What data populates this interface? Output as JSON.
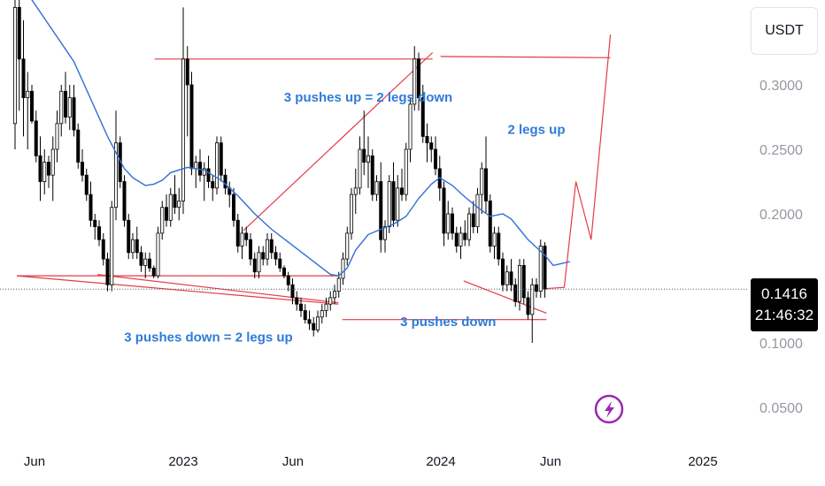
{
  "currency": "USDT",
  "current_price": "0.1416",
  "countdown": "21:46:32",
  "colors": {
    "candle": "#000000",
    "moving_average": "#2f6fd6",
    "pattern_lines": "#e23b46",
    "annotation_text": "#2f7bd8",
    "last_price_line": "#555555",
    "flash_icon": "#9b27b0"
  },
  "icons": {
    "flash": "lightning-bolt-icon"
  },
  "chart_data": {
    "type": "candlestick",
    "title": "",
    "y_scale": "linear",
    "ylim": [
      0.035,
      0.36
    ],
    "y_ticks": [
      "0.3000",
      "0.2500",
      "0.2000",
      "0.1000",
      "0.0500"
    ],
    "x_ticks": [
      "Jun",
      "2023",
      "Jun",
      "2024",
      "Jun",
      "2025"
    ],
    "last_price": 0.1416,
    "ohlc_weekly": [
      [
        0.27,
        0.43,
        0.25,
        0.36
      ],
      [
        0.36,
        0.39,
        0.28,
        0.32
      ],
      [
        0.32,
        0.35,
        0.26,
        0.29
      ],
      [
        0.29,
        0.31,
        0.25,
        0.295
      ],
      [
        0.295,
        0.3,
        0.27,
        0.272
      ],
      [
        0.272,
        0.28,
        0.24,
        0.245
      ],
      [
        0.245,
        0.26,
        0.21,
        0.225
      ],
      [
        0.225,
        0.25,
        0.215,
        0.24
      ],
      [
        0.24,
        0.245,
        0.22,
        0.23
      ],
      [
        0.23,
        0.26,
        0.21,
        0.25
      ],
      [
        0.25,
        0.28,
        0.24,
        0.27
      ],
      [
        0.27,
        0.3,
        0.26,
        0.295
      ],
      [
        0.295,
        0.31,
        0.27,
        0.275
      ],
      [
        0.275,
        0.3,
        0.265,
        0.29
      ],
      [
        0.29,
        0.3,
        0.26,
        0.265
      ],
      [
        0.265,
        0.27,
        0.235,
        0.24
      ],
      [
        0.24,
        0.25,
        0.225,
        0.23
      ],
      [
        0.23,
        0.235,
        0.21,
        0.215
      ],
      [
        0.215,
        0.225,
        0.19,
        0.195
      ],
      [
        0.195,
        0.2,
        0.18,
        0.19
      ],
      [
        0.19,
        0.195,
        0.175,
        0.18
      ],
      [
        0.18,
        0.185,
        0.16,
        0.165
      ],
      [
        0.165,
        0.17,
        0.14,
        0.145
      ],
      [
        0.145,
        0.21,
        0.14,
        0.205
      ],
      [
        0.205,
        0.28,
        0.195,
        0.255
      ],
      [
        0.255,
        0.26,
        0.22,
        0.225
      ],
      [
        0.225,
        0.23,
        0.19,
        0.195
      ],
      [
        0.195,
        0.2,
        0.165,
        0.17
      ],
      [
        0.17,
        0.185,
        0.165,
        0.18
      ],
      [
        0.18,
        0.19,
        0.165,
        0.17
      ],
      [
        0.17,
        0.175,
        0.155,
        0.16
      ],
      [
        0.16,
        0.17,
        0.15,
        0.165
      ],
      [
        0.165,
        0.17,
        0.155,
        0.158
      ],
      [
        0.158,
        0.16,
        0.15,
        0.152
      ],
      [
        0.152,
        0.19,
        0.15,
        0.185
      ],
      [
        0.185,
        0.21,
        0.18,
        0.205
      ],
      [
        0.205,
        0.215,
        0.19,
        0.195
      ],
      [
        0.195,
        0.22,
        0.19,
        0.215
      ],
      [
        0.215,
        0.23,
        0.2,
        0.205
      ],
      [
        0.205,
        0.22,
        0.195,
        0.21
      ],
      [
        0.21,
        0.36,
        0.2,
        0.32
      ],
      [
        0.32,
        0.33,
        0.26,
        0.3
      ],
      [
        0.3,
        0.31,
        0.23,
        0.235
      ],
      [
        0.235,
        0.245,
        0.22,
        0.24
      ],
      [
        0.24,
        0.25,
        0.225,
        0.23
      ],
      [
        0.23,
        0.24,
        0.21,
        0.235
      ],
      [
        0.235,
        0.245,
        0.22,
        0.225
      ],
      [
        0.225,
        0.23,
        0.21,
        0.22
      ],
      [
        0.22,
        0.26,
        0.215,
        0.255
      ],
      [
        0.255,
        0.26,
        0.225,
        0.23
      ],
      [
        0.23,
        0.235,
        0.215,
        0.22
      ],
      [
        0.22,
        0.225,
        0.205,
        0.215
      ],
      [
        0.215,
        0.22,
        0.19,
        0.195
      ],
      [
        0.195,
        0.2,
        0.17,
        0.175
      ],
      [
        0.175,
        0.19,
        0.165,
        0.185
      ],
      [
        0.185,
        0.19,
        0.175,
        0.18
      ],
      [
        0.18,
        0.185,
        0.16,
        0.165
      ],
      [
        0.165,
        0.17,
        0.15,
        0.155
      ],
      [
        0.155,
        0.175,
        0.15,
        0.17
      ],
      [
        0.17,
        0.175,
        0.16,
        0.165
      ],
      [
        0.165,
        0.185,
        0.16,
        0.18
      ],
      [
        0.18,
        0.185,
        0.165,
        0.17
      ],
      [
        0.17,
        0.175,
        0.16,
        0.165
      ],
      [
        0.165,
        0.17,
        0.155,
        0.158
      ],
      [
        0.158,
        0.16,
        0.15,
        0.152
      ],
      [
        0.152,
        0.155,
        0.14,
        0.145
      ],
      [
        0.145,
        0.15,
        0.13,
        0.135
      ],
      [
        0.135,
        0.14,
        0.125,
        0.13
      ],
      [
        0.13,
        0.135,
        0.12,
        0.125
      ],
      [
        0.125,
        0.13,
        0.115,
        0.118
      ],
      [
        0.118,
        0.125,
        0.11,
        0.115
      ],
      [
        0.115,
        0.12,
        0.105,
        0.11
      ],
      [
        0.11,
        0.125,
        0.108,
        0.12
      ],
      [
        0.12,
        0.13,
        0.115,
        0.125
      ],
      [
        0.125,
        0.135,
        0.12,
        0.13
      ],
      [
        0.13,
        0.14,
        0.125,
        0.135
      ],
      [
        0.135,
        0.145,
        0.13,
        0.14
      ],
      [
        0.14,
        0.155,
        0.135,
        0.15
      ],
      [
        0.15,
        0.17,
        0.145,
        0.165
      ],
      [
        0.165,
        0.19,
        0.16,
        0.185
      ],
      [
        0.185,
        0.22,
        0.18,
        0.215
      ],
      [
        0.215,
        0.235,
        0.2,
        0.22
      ],
      [
        0.22,
        0.26,
        0.215,
        0.25
      ],
      [
        0.25,
        0.28,
        0.23,
        0.24
      ],
      [
        0.24,
        0.26,
        0.22,
        0.245
      ],
      [
        0.245,
        0.25,
        0.21,
        0.215
      ],
      [
        0.215,
        0.23,
        0.21,
        0.225
      ],
      [
        0.225,
        0.24,
        0.17,
        0.18
      ],
      [
        0.18,
        0.195,
        0.17,
        0.19
      ],
      [
        0.19,
        0.23,
        0.185,
        0.225
      ],
      [
        0.225,
        0.24,
        0.19,
        0.195
      ],
      [
        0.195,
        0.23,
        0.19,
        0.22
      ],
      [
        0.22,
        0.235,
        0.21,
        0.215
      ],
      [
        0.215,
        0.255,
        0.21,
        0.25
      ],
      [
        0.25,
        0.29,
        0.24,
        0.285
      ],
      [
        0.285,
        0.33,
        0.28,
        0.32
      ],
      [
        0.32,
        0.325,
        0.28,
        0.29
      ],
      [
        0.29,
        0.3,
        0.255,
        0.26
      ],
      [
        0.26,
        0.27,
        0.24,
        0.255
      ],
      [
        0.255,
        0.26,
        0.24,
        0.25
      ],
      [
        0.25,
        0.26,
        0.23,
        0.235
      ],
      [
        0.235,
        0.245,
        0.21,
        0.22
      ],
      [
        0.22,
        0.225,
        0.175,
        0.185
      ],
      [
        0.185,
        0.21,
        0.18,
        0.2
      ],
      [
        0.2,
        0.205,
        0.18,
        0.185
      ],
      [
        0.185,
        0.19,
        0.17,
        0.175
      ],
      [
        0.175,
        0.19,
        0.165,
        0.185
      ],
      [
        0.185,
        0.195,
        0.175,
        0.18
      ],
      [
        0.18,
        0.205,
        0.175,
        0.2
      ],
      [
        0.2,
        0.21,
        0.185,
        0.19
      ],
      [
        0.19,
        0.22,
        0.185,
        0.215
      ],
      [
        0.215,
        0.24,
        0.2,
        0.235
      ],
      [
        0.235,
        0.26,
        0.2,
        0.21
      ],
      [
        0.21,
        0.215,
        0.17,
        0.175
      ],
      [
        0.175,
        0.19,
        0.165,
        0.185
      ],
      [
        0.185,
        0.19,
        0.16,
        0.165
      ],
      [
        0.165,
        0.17,
        0.14,
        0.145
      ],
      [
        0.145,
        0.16,
        0.14,
        0.155
      ],
      [
        0.155,
        0.165,
        0.14,
        0.145
      ],
      [
        0.145,
        0.15,
        0.128,
        0.132
      ],
      [
        0.132,
        0.165,
        0.125,
        0.16
      ],
      [
        0.16,
        0.165,
        0.13,
        0.135
      ],
      [
        0.135,
        0.14,
        0.118,
        0.122
      ],
      [
        0.122,
        0.15,
        0.1,
        0.145
      ],
      [
        0.145,
        0.15,
        0.135,
        0.14
      ],
      [
        0.14,
        0.18,
        0.135,
        0.175
      ],
      [
        0.175,
        0.178,
        0.135,
        0.1416
      ]
    ],
    "moving_average": [
      [
        0,
        0.385
      ],
      [
        14,
        0.318
      ],
      [
        22,
        0.26
      ],
      [
        26,
        0.235
      ],
      [
        28,
        0.228
      ],
      [
        30,
        0.224
      ],
      [
        31,
        0.222
      ],
      [
        33,
        0.223
      ],
      [
        35,
        0.226
      ],
      [
        37,
        0.232
      ],
      [
        41,
        0.236
      ],
      [
        45,
        0.234
      ],
      [
        49,
        0.226
      ],
      [
        53,
        0.214
      ],
      [
        57,
        0.2
      ],
      [
        61,
        0.188
      ],
      [
        65,
        0.178
      ],
      [
        69,
        0.168
      ],
      [
        73,
        0.158
      ],
      [
        75,
        0.153
      ],
      [
        77,
        0.152
      ],
      [
        79,
        0.158
      ],
      [
        81,
        0.172
      ],
      [
        84,
        0.184
      ],
      [
        87,
        0.188
      ],
      [
        90,
        0.192
      ],
      [
        93,
        0.198
      ],
      [
        96,
        0.212
      ],
      [
        99,
        0.223
      ],
      [
        101,
        0.228
      ],
      [
        104,
        0.222
      ],
      [
        107,
        0.213
      ],
      [
        110,
        0.205
      ],
      [
        113,
        0.198
      ],
      [
        116,
        0.2
      ],
      [
        118,
        0.196
      ],
      [
        120,
        0.188
      ],
      [
        122,
        0.18
      ],
      [
        124,
        0.174
      ],
      [
        126,
        0.168
      ],
      [
        128,
        0.16
      ],
      [
        132,
        0.163
      ]
    ],
    "pattern_lines": [
      {
        "name": "left-low-base",
        "points": [
          [
            0.42,
            0.152
          ],
          [
            76.9,
            0.152
          ]
        ]
      },
      {
        "name": "left-falling-lows",
        "points": [
          [
            0.42,
            0.152
          ],
          [
            76.9,
            0.13
          ]
        ]
      },
      {
        "name": "left-second-low",
        "points": [
          [
            19.6,
            0.153
          ],
          [
            76.9,
            0.131
          ]
        ]
      },
      {
        "name": "bottom-support",
        "points": [
          [
            77.8,
            0.118
          ],
          [
            126.4,
            0.118
          ]
        ]
      },
      {
        "name": "top-resistance",
        "points": [
          [
            33.2,
            0.32
          ],
          [
            99.3,
            0.32
          ]
        ]
      },
      {
        "name": "rising-highs",
        "points": [
          [
            54.3,
            0.187
          ],
          [
            99.3,
            0.325
          ]
        ]
      },
      {
        "name": "right-falling-lows",
        "points": [
          [
            106.7,
            0.148
          ],
          [
            126.4,
            0.123
          ]
        ]
      },
      {
        "name": "projection",
        "points": [
          [
            126.0,
            0.142
          ],
          [
            130.6,
            0.143
          ],
          [
            133.4,
            0.225
          ],
          [
            137.0,
            0.18
          ],
          [
            141.6,
            0.339
          ]
        ]
      },
      {
        "name": "projection-target",
        "points": [
          [
            101.2,
            0.322
          ],
          [
            141.6,
            0.321
          ]
        ]
      }
    ],
    "annotations": [
      {
        "text": "3 pushes up = 2 legs down",
        "x": 84,
        "y": 0.287
      },
      {
        "text": "2 legs up",
        "x": 124,
        "y": 0.262
      },
      {
        "text": "3 pushes down = 2 legs up",
        "x": 46,
        "y": 0.101
      },
      {
        "text": "3 pushes down",
        "x": 103,
        "y": 0.113
      }
    ]
  }
}
